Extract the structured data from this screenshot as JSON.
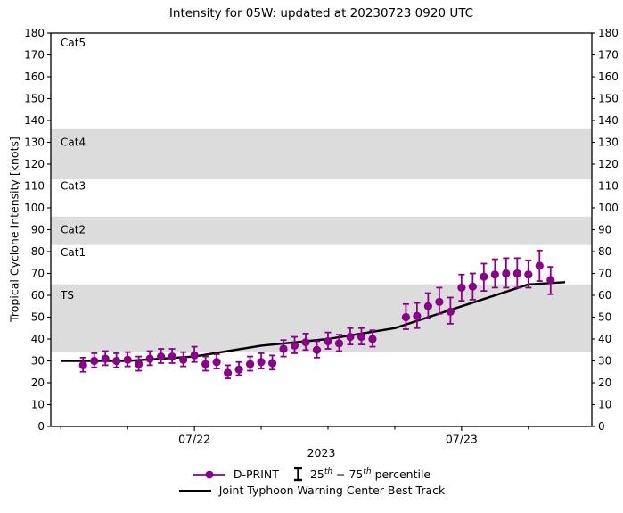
{
  "chart_data": {
    "type": "line",
    "title": "Intensity for 05W: updated at 20230723 0920 UTC",
    "xlabel": "2023",
    "ylabel": "Tropical Cyclone Intensity [knots]",
    "ylim": [
      0,
      180
    ],
    "y_ticks": [
      0,
      10,
      20,
      30,
      40,
      50,
      60,
      70,
      80,
      90,
      100,
      110,
      120,
      130,
      140,
      150,
      160,
      170,
      180
    ],
    "x_axis": {
      "domain_hours": [
        -0.9,
        47.7
      ],
      "hours_reference": "hours after 2023-07-21 12:00 UTC",
      "major_ticks": [
        {
          "hour": 12,
          "label": "07/22"
        },
        {
          "hour": 36,
          "label": "07/23"
        }
      ],
      "minor_tick_hours": [
        0,
        6,
        18,
        24,
        30,
        42
      ]
    },
    "grid": false,
    "bands": [
      {
        "label": "TS",
        "from": 34,
        "to": 65,
        "shaded": true,
        "label_v": 60
      },
      {
        "label": "Cat1",
        "from": 65,
        "to": 83,
        "shaded": false,
        "label_v": 79.5
      },
      {
        "label": "Cat2",
        "from": 83,
        "to": 96,
        "shaded": true,
        "label_v": 90
      },
      {
        "label": "Cat3",
        "from": 96,
        "to": 113,
        "shaded": false,
        "label_v": 110
      },
      {
        "label": "Cat4",
        "from": 113,
        "to": 136,
        "shaded": true,
        "label_v": 130
      },
      {
        "label": "Cat5",
        "from": 136,
        "to": 180,
        "shaded": false,
        "label_v": 175.5
      }
    ],
    "colors": {
      "band_gray": "#dcdcdc",
      "dprint": "#8b008b",
      "best_track": "#000000"
    },
    "series": [
      {
        "name": "D-PRINT",
        "type": "scatter_errorbar",
        "color": "#8b008b",
        "points_format": "[hours_after_07-21_12UTC, intensity_kt, p25_kt, p75_kt]",
        "points": [
          [
            2,
            28,
            25,
            31.5
          ],
          [
            3,
            30,
            27,
            33.5
          ],
          [
            4,
            31,
            28,
            34.5
          ],
          [
            5,
            30,
            27,
            33.5
          ],
          [
            6,
            30.5,
            27.5,
            34
          ],
          [
            7,
            28.5,
            25.5,
            32
          ],
          [
            8,
            31,
            28,
            34.5
          ],
          [
            9,
            32,
            29,
            35.5
          ],
          [
            10,
            32,
            29,
            35.5
          ],
          [
            11,
            30.5,
            27.5,
            34
          ],
          [
            12,
            32.5,
            29.5,
            36.5
          ],
          [
            13,
            28.5,
            25.5,
            32
          ],
          [
            14,
            29.5,
            26.5,
            33
          ],
          [
            15,
            24.5,
            22,
            28
          ],
          [
            16,
            26,
            23.5,
            29.5
          ],
          [
            17,
            28.5,
            25.5,
            32
          ],
          [
            18,
            29.5,
            26.5,
            33.5
          ],
          [
            19,
            29,
            26,
            32.5
          ],
          [
            20,
            35.5,
            32,
            39.5
          ],
          [
            21,
            37,
            33.5,
            41
          ],
          [
            22,
            38.5,
            35,
            42.5
          ],
          [
            23,
            35,
            31.5,
            39
          ],
          [
            24,
            39,
            35.5,
            43
          ],
          [
            25,
            38,
            34.5,
            42
          ],
          [
            26,
            41,
            37.5,
            45
          ],
          [
            27,
            41,
            37.5,
            45
          ],
          [
            28,
            40,
            36.5,
            44
          ],
          [
            31,
            50,
            44.5,
            56
          ],
          [
            32,
            50.5,
            45,
            56.5
          ],
          [
            33,
            55,
            49.5,
            61
          ],
          [
            34,
            57,
            51.5,
            63.5
          ],
          [
            35,
            52.5,
            47,
            59
          ],
          [
            36,
            63.5,
            57.5,
            69.5
          ],
          [
            37,
            64,
            58,
            70
          ],
          [
            38,
            68.5,
            62,
            74.5
          ],
          [
            39,
            69.5,
            63.5,
            76.5
          ],
          [
            40,
            70,
            63.5,
            77
          ],
          [
            41,
            70,
            63.5,
            77
          ],
          [
            42,
            69.5,
            63.5,
            76
          ],
          [
            43,
            73.5,
            66.5,
            80.5
          ],
          [
            44,
            67,
            60.5,
            73
          ]
        ]
      },
      {
        "name": "Joint Typhoon Warning Center Best Track",
        "type": "line",
        "color": "#000000",
        "points_format": "[hours_after_07-21_12UTC, intensity_kt]",
        "points": [
          [
            0,
            30
          ],
          [
            6,
            30
          ],
          [
            12,
            32
          ],
          [
            18,
            37
          ],
          [
            24,
            40
          ],
          [
            30,
            45
          ],
          [
            36,
            55
          ],
          [
            42,
            65
          ],
          [
            45.3,
            66
          ]
        ]
      }
    ]
  },
  "legend": {
    "dprint_label": "D-PRINT",
    "percentile": {
      "pre": "25",
      "pre_sup": "th",
      "mid": " − 75",
      "mid_sup": "th",
      "post": " percentile"
    },
    "besttrack_label": "Joint Typhoon Warning Center Best Track"
  }
}
